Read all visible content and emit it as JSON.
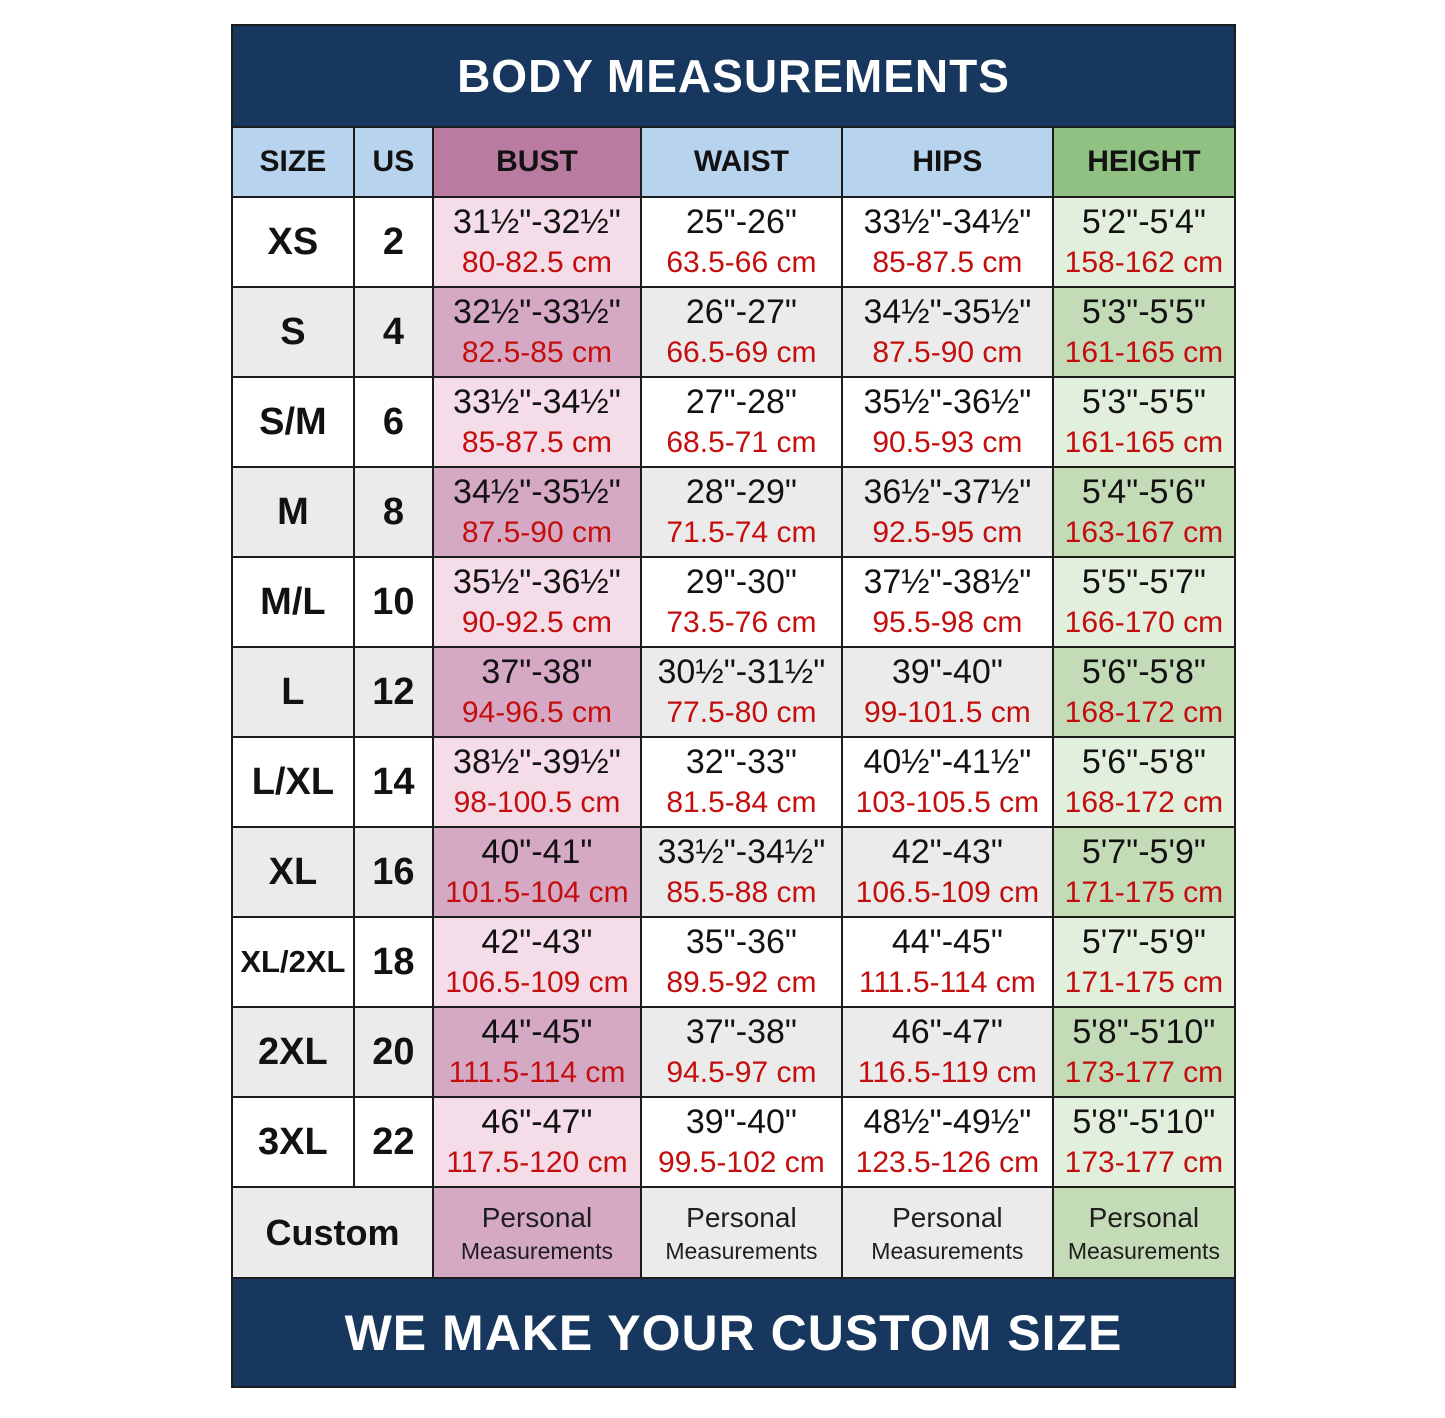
{
  "title": "BODY MEASUREMENTS",
  "footer": "WE MAKE YOUR CUSTOM SIZE",
  "colors": {
    "navy": "#17375e",
    "header_blue": "#b8d3ee",
    "header_pink": "#ba7ba0",
    "header_green": "#90c082",
    "pink_light": "#f4dde8",
    "pink_medium": "#d5a8c4",
    "green_light": "#e3efdd",
    "green_medium": "#c4dbb8",
    "row_gray": "#ebebeb",
    "cm_red": "#c40e0e",
    "grid_border": "#1c1c1c"
  },
  "chart_data": {
    "type": "table",
    "title": "BODY MEASUREMENTS",
    "columns": [
      "SIZE",
      "US",
      "BUST",
      "WAIST",
      "HIPS",
      "HEIGHT"
    ],
    "rows": [
      {
        "size": "XS",
        "us": "2",
        "bust_in": "31½\"-32½\"",
        "bust_cm": "80-82.5 cm",
        "waist_in": "25\"-26\"",
        "waist_cm": "63.5-66 cm",
        "hips_in": "33½\"-34½\"",
        "hips_cm": "85-87.5 cm",
        "height_in": "5'2\"-5'4\"",
        "height_cm": "158-162 cm"
      },
      {
        "size": "S",
        "us": "4",
        "bust_in": "32½\"-33½\"",
        "bust_cm": "82.5-85 cm",
        "waist_in": "26\"-27\"",
        "waist_cm": "66.5-69 cm",
        "hips_in": "34½\"-35½\"",
        "hips_cm": "87.5-90 cm",
        "height_in": "5'3\"-5'5\"",
        "height_cm": "161-165 cm"
      },
      {
        "size": "S/M",
        "us": "6",
        "bust_in": "33½\"-34½\"",
        "bust_cm": "85-87.5 cm",
        "waist_in": "27\"-28\"",
        "waist_cm": "68.5-71 cm",
        "hips_in": "35½\"-36½\"",
        "hips_cm": "90.5-93 cm",
        "height_in": "5'3\"-5'5\"",
        "height_cm": "161-165 cm"
      },
      {
        "size": "M",
        "us": "8",
        "bust_in": "34½\"-35½\"",
        "bust_cm": "87.5-90 cm",
        "waist_in": "28\"-29\"",
        "waist_cm": "71.5-74 cm",
        "hips_in": "36½\"-37½\"",
        "hips_cm": "92.5-95 cm",
        "height_in": "5'4\"-5'6\"",
        "height_cm": "163-167 cm"
      },
      {
        "size": "M/L",
        "us": "10",
        "bust_in": "35½\"-36½\"",
        "bust_cm": "90-92.5 cm",
        "waist_in": "29\"-30\"",
        "waist_cm": "73.5-76 cm",
        "hips_in": "37½\"-38½\"",
        "hips_cm": "95.5-98 cm",
        "height_in": "5'5\"-5'7\"",
        "height_cm": "166-170 cm"
      },
      {
        "size": "L",
        "us": "12",
        "bust_in": "37\"-38\"",
        "bust_cm": "94-96.5 cm",
        "waist_in": "30½\"-31½\"",
        "waist_cm": "77.5-80 cm",
        "hips_in": "39\"-40\"",
        "hips_cm": "99-101.5 cm",
        "height_in": "5'6\"-5'8\"",
        "height_cm": "168-172 cm"
      },
      {
        "size": "L/XL",
        "us": "14",
        "bust_in": "38½\"-39½\"",
        "bust_cm": "98-100.5 cm",
        "waist_in": "32\"-33\"",
        "waist_cm": "81.5-84 cm",
        "hips_in": "40½\"-41½\"",
        "hips_cm": "103-105.5 cm",
        "height_in": "5'6\"-5'8\"",
        "height_cm": "168-172 cm"
      },
      {
        "size": "XL",
        "us": "16",
        "bust_in": "40\"-41\"",
        "bust_cm": "101.5-104 cm",
        "waist_in": "33½\"-34½\"",
        "waist_cm": "85.5-88 cm",
        "hips_in": "42\"-43\"",
        "hips_cm": "106.5-109 cm",
        "height_in": "5'7\"-5'9\"",
        "height_cm": "171-175 cm"
      },
      {
        "size": "XL/2XL",
        "us": "18",
        "bust_in": "42\"-43\"",
        "bust_cm": "106.5-109 cm",
        "waist_in": "35\"-36\"",
        "waist_cm": "89.5-92 cm",
        "hips_in": "44\"-45\"",
        "hips_cm": "111.5-114 cm",
        "height_in": "5'7\"-5'9\"",
        "height_cm": "171-175 cm"
      },
      {
        "size": "2XL",
        "us": "20",
        "bust_in": "44\"-45\"",
        "bust_cm": "111.5-114 cm",
        "waist_in": "37\"-38\"",
        "waist_cm": "94.5-97 cm",
        "hips_in": "46\"-47\"",
        "hips_cm": "116.5-119 cm",
        "height_in": "5'8\"-5'10\"",
        "height_cm": "173-177 cm"
      },
      {
        "size": "3XL",
        "us": "22",
        "bust_in": "46\"-47\"",
        "bust_cm": "117.5-120 cm",
        "waist_in": "39\"-40\"",
        "waist_cm": "99.5-102 cm",
        "hips_in": "48½\"-49½\"",
        "hips_cm": "123.5-126 cm",
        "height_in": "5'8\"-5'10\"",
        "height_cm": "173-177 cm"
      }
    ],
    "custom_row": {
      "label": "Custom",
      "personal": "Personal",
      "measurements": "Measurements"
    },
    "footer": "WE MAKE YOUR CUSTOM SIZE"
  }
}
